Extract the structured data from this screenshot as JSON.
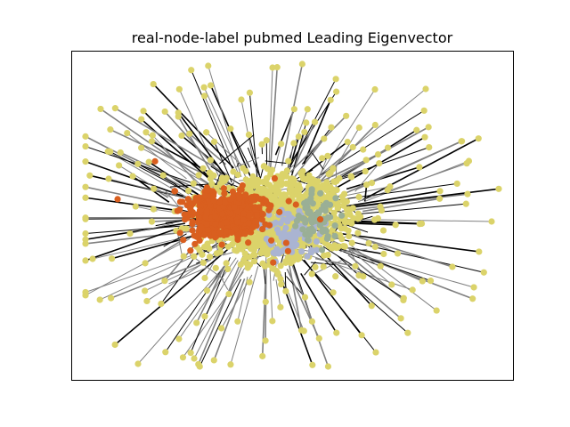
{
  "figure": {
    "title": "real-node-label pubmed Leading Eigenvector"
  },
  "graph": {
    "layout": "force-directed",
    "axes_visible": false,
    "frame": true,
    "edge_color": "#808080",
    "edge_color_dense": "#000000",
    "communities": [
      {
        "color": "#dbd36a",
        "role": "majority"
      },
      {
        "color": "#d95f1f",
        "role": "dense-core"
      },
      {
        "color": "#aab4d2",
        "role": "minor"
      },
      {
        "color": "#9aaf96",
        "role": "minor"
      }
    ]
  }
}
